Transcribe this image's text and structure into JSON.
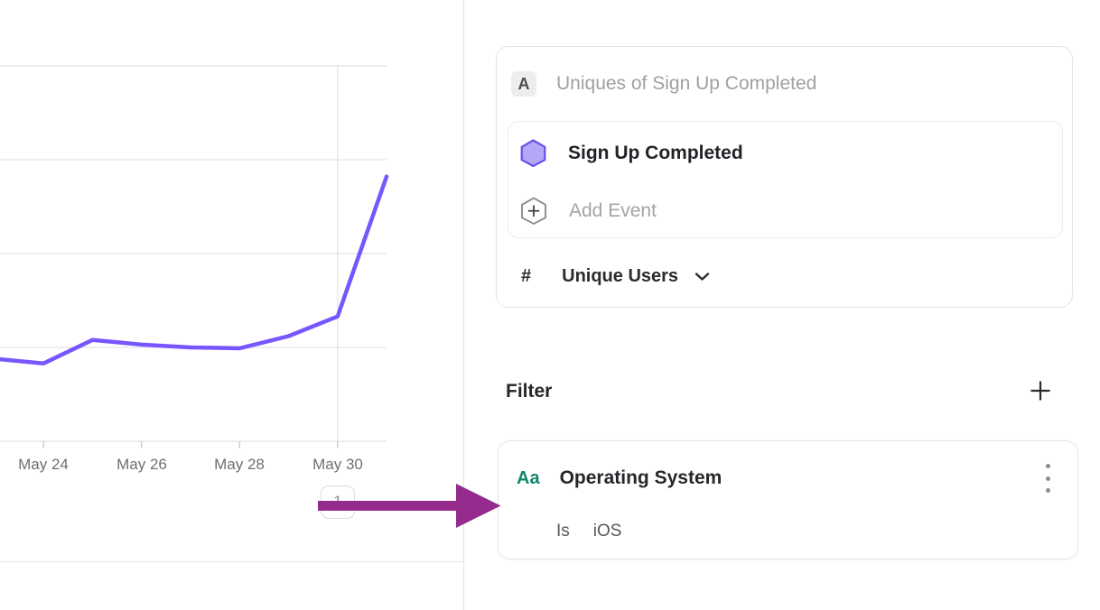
{
  "colors": {
    "line": "#7856ff",
    "hex_fill": "#b3a7f7",
    "hex_stroke": "#6b4fe8",
    "arrow": "#942b8d",
    "property_teal": "#12856a",
    "grid": "#e8e8e8",
    "axis_text": "#6f6f6f",
    "dark_text": "#26262b",
    "muted_text": "#9fa0a3",
    "separator": "#e3e3e3"
  },
  "chart_data": {
    "type": "line",
    "title": "",
    "xlabel": "",
    "ylabel": "",
    "x": [
      "May 23",
      "May 24",
      "May 25",
      "May 26",
      "May 27",
      "May 28",
      "May 29",
      "May 30",
      "May 31"
    ],
    "series": [
      {
        "name": "Sign Up Completed",
        "values": [
          0.88,
          0.83,
          1.08,
          1.03,
          1.0,
          0.99,
          1.12,
          1.33,
          2.82
        ]
      }
    ],
    "tick_labels": [
      "May 24",
      "May 26",
      "May 28",
      "May 30"
    ],
    "ylim": [
      0,
      4
    ],
    "grid": "horizontal",
    "legend": "none",
    "vertical_gridline_at": "May 30",
    "annotation": {
      "label": "1",
      "x": "May 30"
    },
    "line_color": "#7856ff"
  },
  "query_builder": {
    "series_badge": "A",
    "series_title": "Uniques of Sign Up Completed",
    "event": {
      "name": "Sign Up Completed"
    },
    "add_event_label": "Add Event",
    "measurement": {
      "symbol": "#",
      "label": "Unique Users"
    }
  },
  "filter_section": {
    "heading": "Filter",
    "filter": {
      "property_type_badge": "Aa",
      "property_name": "Operating System",
      "operator": "Is",
      "value": "iOS"
    }
  }
}
